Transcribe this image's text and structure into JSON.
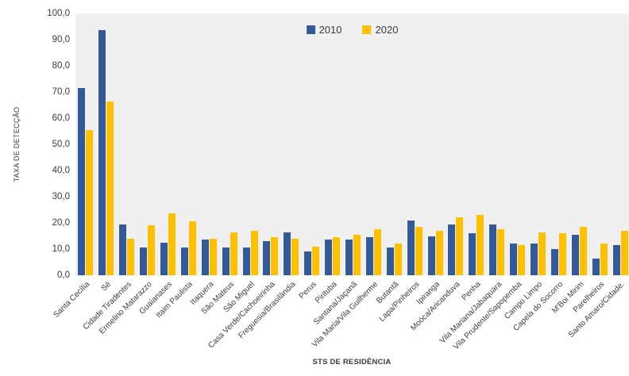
{
  "chart_data": {
    "type": "bar",
    "title": "",
    "xlabel": "STS DE RESIDÊNCIA",
    "ylabel": "TAXA DE DETECÇÃO",
    "ylim": [
      0,
      100
    ],
    "grid": false,
    "plot_bg_color": "#F0F0F0",
    "text_color": "#3b3b3b",
    "legend_position": "top-center",
    "yticks": [
      {
        "v": 100,
        "label": "100,0"
      },
      {
        "v": 90,
        "label": "90,0"
      },
      {
        "v": 80,
        "label": "80,0"
      },
      {
        "v": 70,
        "label": "70,0"
      },
      {
        "v": 60,
        "label": "60,0"
      },
      {
        "v": 50,
        "label": "50,0"
      },
      {
        "v": 40,
        "label": "40,0"
      },
      {
        "v": 30,
        "label": "30,0"
      },
      {
        "v": 20,
        "label": "20,0"
      },
      {
        "v": 10,
        "label": "10,0"
      },
      {
        "v": 0,
        "label": "0,0"
      }
    ],
    "categories": [
      "Santa Cecília",
      "Sé",
      "Cidade Tiradentes",
      "Ermelino Matarazzo",
      "Guaianases",
      "Itaim Paulista",
      "Itaquera",
      "São Mateus",
      "São Miguel",
      "Casa Verde/Cachoeirinha",
      "Freguesia/Brasilândia",
      "Perus",
      "Pirituba",
      "Santana/Jaçanã",
      "Vila Maria/Vila Guilherme",
      "Butantã",
      "Lapa/Pinheiros",
      "Ipiranga",
      "Moóca/Aricanduva",
      "Penha",
      "Vila Mariana/Jabaquara",
      "Vila Prudente/Sapopemba",
      "Campo Limpo",
      "Capela do Socorro",
      "M'Boi Mirim",
      "Parelheiros",
      "Santo Amaro/Cidade."
    ],
    "series": [
      {
        "name": "2010",
        "color": "#335A97",
        "values": [
          71.5,
          93.5,
          19.5,
          10.5,
          12.5,
          10.5,
          13.5,
          10.5,
          10.5,
          13.0,
          16.5,
          9.0,
          13.5,
          13.5,
          14.5,
          10.5,
          21.0,
          15.0,
          19.5,
          16.0,
          19.5,
          12.0,
          12.0,
          10.0,
          15.5,
          6.5,
          11.5
        ]
      },
      {
        "name": "2020",
        "color": "#FFC000",
        "values": [
          55.5,
          66.5,
          14.0,
          19.0,
          23.5,
          20.5,
          14.0,
          16.5,
          17.0,
          14.5,
          14.0,
          11.0,
          14.5,
          15.5,
          17.5,
          12.0,
          18.5,
          17.0,
          22.0,
          23.0,
          17.5,
          11.5,
          16.5,
          16.0,
          18.5,
          12.0,
          17.0
        ]
      }
    ]
  }
}
